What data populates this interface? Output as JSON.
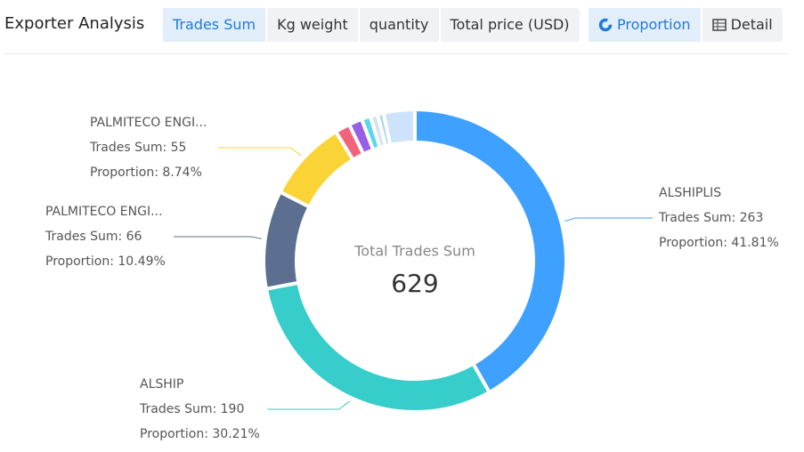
{
  "header": {
    "title": "Exporter Analysis",
    "metric_tabs": [
      "Trades Sum",
      "Kg weight",
      "quantity",
      "Total price (USD)"
    ],
    "view_tabs": [
      "Proportion",
      "Detail"
    ]
  },
  "chart_data": {
    "type": "pie",
    "center_label": "Total Trades Sum",
    "total": 629,
    "categories": [
      "ALSHIPLIS",
      "ALSHIP",
      "PALMITECO ENGI...",
      "PALMITECO ENGI...",
      null,
      null,
      null,
      null,
      null,
      null
    ],
    "values": [
      263,
      190,
      66,
      55,
      10,
      9,
      6,
      5,
      4,
      21
    ],
    "value_labels": [
      "Trades Sum: 263",
      "Trades Sum: 190",
      "Trades Sum: 66",
      "Trades Sum: 55",
      null,
      null,
      null,
      null,
      null,
      null
    ],
    "proportion_labels": [
      "Proportion: 41.81%",
      "Proportion: 30.21%",
      "Proportion: 10.49%",
      "Proportion: 8.74%",
      null,
      null,
      null,
      null,
      null,
      null
    ],
    "colors": [
      "#3ea0ff",
      "#36cdcb",
      "#5c6f91",
      "#fad436",
      "#f2637b",
      "#975fe4",
      "#5ad8e6",
      "#d6e4f0",
      "#a8d8f0",
      "#cde3fb"
    ]
  }
}
